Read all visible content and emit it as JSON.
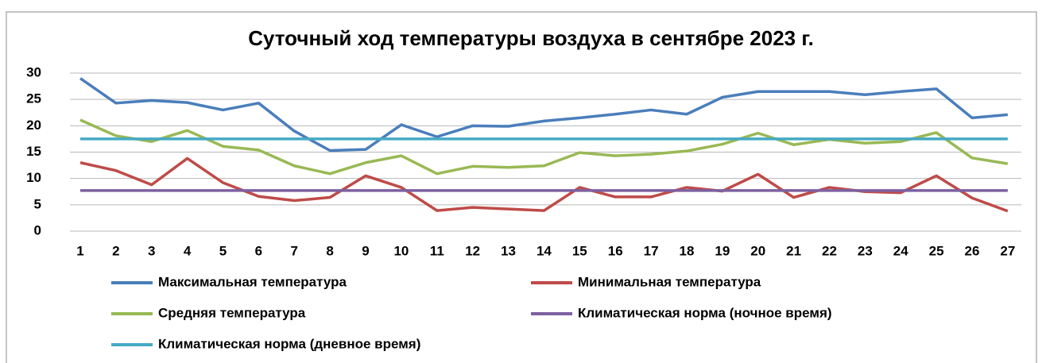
{
  "chart_data": {
    "type": "line",
    "title": "Суточный ход температуры воздуха в сентябре 2023 г.",
    "categories": [
      "1",
      "2",
      "3",
      "4",
      "5",
      "6",
      "7",
      "8",
      "9",
      "10",
      "11",
      "12",
      "13",
      "14",
      "15",
      "16",
      "17",
      "18",
      "19",
      "20",
      "21",
      "22",
      "23",
      "24",
      "25",
      "26",
      "27"
    ],
    "series": [
      {
        "name": "Максимальная температура",
        "color": "#4a7ebb",
        "values": [
          29,
          24.3,
          24.8,
          24.4,
          23,
          24.3,
          19,
          15.3,
          15.5,
          20.2,
          17.9,
          20,
          19.9,
          20.9,
          21.5,
          22.2,
          23,
          22.2,
          25.4,
          26.5,
          26.5,
          26.5,
          25.9,
          26.5,
          27,
          21.5,
          22.1
        ]
      },
      {
        "name": "Минимальная температура",
        "color": "#be4b48",
        "values": [
          13,
          11.5,
          8.8,
          13.8,
          9.2,
          6.6,
          5.8,
          6.4,
          10.5,
          8.3,
          3.9,
          4.5,
          4.2,
          3.9,
          8.3,
          6.5,
          6.5,
          8.3,
          7.6,
          10.8,
          6.4,
          8.3,
          7.5,
          7.3,
          10.5,
          6.3,
          3.8
        ]
      },
      {
        "name": "Средняя температура",
        "color": "#98b954",
        "values": [
          21.1,
          18.1,
          17,
          19.1,
          16.1,
          15.4,
          12.4,
          10.9,
          13,
          14.3,
          10.9,
          12.3,
          12.1,
          12.4,
          14.9,
          14.3,
          14.6,
          15.2,
          16.5,
          18.6,
          16.4,
          17.4,
          16.7,
          17,
          18.7,
          13.9,
          12.8
        ]
      },
      {
        "name": "Климатическая норма (ночное время)",
        "color": "#7d60a0",
        "values": [
          7.7,
          7.7,
          7.7,
          7.7,
          7.7,
          7.7,
          7.7,
          7.7,
          7.7,
          7.7,
          7.7,
          7.7,
          7.7,
          7.7,
          7.7,
          7.7,
          7.7,
          7.7,
          7.7,
          7.7,
          7.7,
          7.7,
          7.7,
          7.7,
          7.7,
          7.7,
          7.7
        ]
      },
      {
        "name": "Климатическая норма (дневное время)",
        "color": "#46aac5",
        "values": [
          17.5,
          17.5,
          17.5,
          17.5,
          17.5,
          17.5,
          17.5,
          17.5,
          17.5,
          17.5,
          17.5,
          17.5,
          17.5,
          17.5,
          17.5,
          17.5,
          17.5,
          17.5,
          17.5,
          17.5,
          17.5,
          17.5,
          17.5,
          17.5,
          17.5,
          17.5,
          17.5
        ]
      }
    ],
    "ylim": [
      0,
      30
    ],
    "yticks": [
      0,
      5,
      10,
      15,
      20,
      25,
      30
    ],
    "grid": true,
    "legend": "bottom"
  }
}
